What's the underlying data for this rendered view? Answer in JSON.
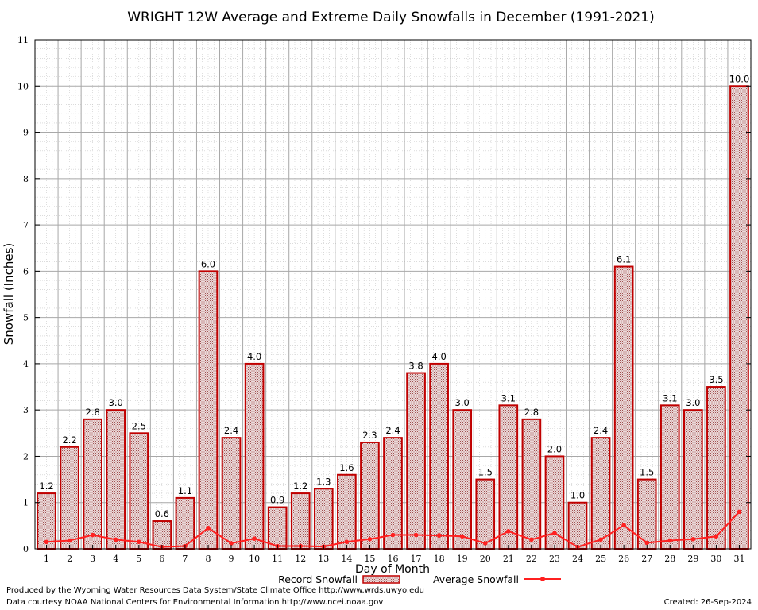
{
  "chart_data": {
    "type": "bar",
    "title": "WRIGHT 12W Average and Extreme Daily Snowfalls in December (1991-2021)",
    "xlabel": "Day of Month",
    "ylabel": "Snowfall (Inches)",
    "ylim": [
      0,
      11
    ],
    "yticks": [
      "0",
      "1",
      "2",
      "3",
      "4",
      "5",
      "6",
      "7",
      "8",
      "9",
      "10",
      "11"
    ],
    "categories": [
      "1",
      "2",
      "3",
      "4",
      "5",
      "6",
      "7",
      "8",
      "9",
      "10",
      "11",
      "12",
      "13",
      "14",
      "15",
      "16",
      "17",
      "18",
      "19",
      "20",
      "21",
      "22",
      "23",
      "24",
      "25",
      "26",
      "27",
      "28",
      "29",
      "30",
      "31"
    ],
    "grid": true,
    "legend_position": "bottom",
    "series": [
      {
        "name": "Record Snowfall",
        "type": "bar",
        "color": "#c00000",
        "values": [
          1.2,
          2.2,
          2.8,
          3.0,
          2.5,
          0.6,
          1.1,
          6.0,
          2.4,
          4.0,
          0.9,
          1.2,
          1.3,
          1.6,
          2.3,
          2.4,
          3.8,
          4.0,
          3.0,
          1.5,
          3.1,
          2.8,
          2.0,
          1.0,
          2.4,
          6.1,
          1.5,
          3.1,
          3.0,
          3.5,
          10.0
        ],
        "labels": [
          "1.2",
          "2.2",
          "2.8",
          "3.0",
          "2.5",
          "0.6",
          "1.1",
          "6.0",
          "2.4",
          "4.0",
          "0.9",
          "1.2",
          "1.3",
          "1.6",
          "2.3",
          "2.4",
          "3.8",
          "4.0",
          "3.0",
          "1.5",
          "3.1",
          "2.8",
          "2.0",
          "1.0",
          "2.4",
          "6.1",
          "1.5",
          "3.1",
          "3.0",
          "3.5",
          "10.0"
        ]
      },
      {
        "name": "Average Snowfall",
        "type": "line",
        "color": "#ff2020",
        "values": [
          0.15,
          0.18,
          0.3,
          0.2,
          0.15,
          0.04,
          0.06,
          0.45,
          0.12,
          0.22,
          0.06,
          0.06,
          0.05,
          0.15,
          0.21,
          0.3,
          0.3,
          0.29,
          0.27,
          0.12,
          0.38,
          0.2,
          0.34,
          0.04,
          0.2,
          0.51,
          0.13,
          0.18,
          0.21,
          0.27,
          0.8
        ]
      }
    ]
  },
  "footer": {
    "line1": "Produced by the Wyoming Water Resources Data System/State Climate Office http://www.wrds.uwyo.edu",
    "line2": "Data courtesy NOAA National Centers for Environmental Information http://www.ncei.noaa.gov",
    "created": "Created:  26-Sep-2024"
  }
}
